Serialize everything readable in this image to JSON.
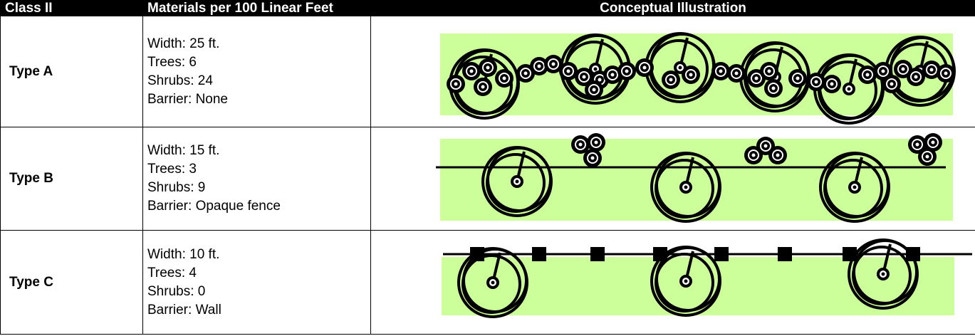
{
  "header": {
    "columns": [
      "Class II",
      "Materials per 100 Linear Feet",
      "Conceptual Illustration"
    ]
  },
  "rows": [
    {
      "type": "Type A",
      "materials": [
        "Width:  25 ft.",
        "Trees: 6",
        "Shrubs: 24",
        "Barrier: None"
      ]
    },
    {
      "type": "Type B",
      "materials": [
        "Width: 15 ft.",
        "Trees: 3",
        "Shrubs: 9",
        "Barrier: Opaque fence"
      ]
    },
    {
      "type": "Type C",
      "materials": [
        "Width: 10 ft.",
        "Trees: 4",
        "Shrubs: 0",
        "Barrier: Wall"
      ]
    }
  ]
}
